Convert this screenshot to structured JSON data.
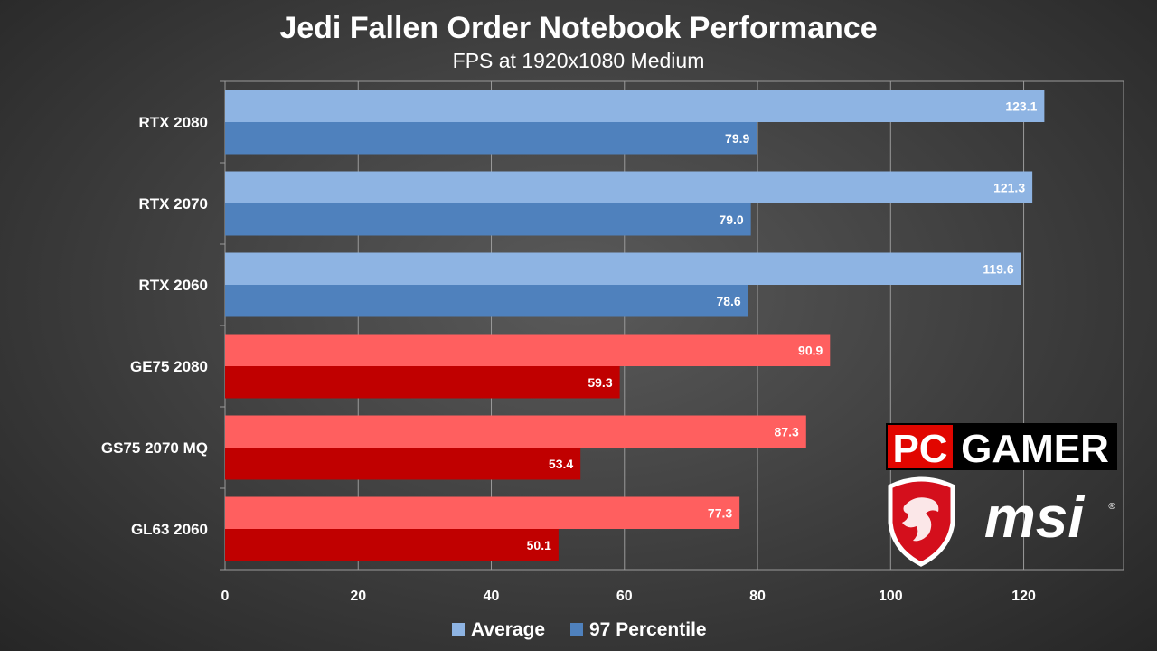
{
  "chart_data": {
    "type": "bar",
    "orientation": "horizontal",
    "title": "Jedi Fallen Order Notebook Performance",
    "subtitle": "FPS at 1920x1080 Medium",
    "categories": [
      "RTX 2080",
      "RTX 2070",
      "RTX 2060",
      "GE75 2080",
      "GS75 2070 MQ",
      "GL63 2060"
    ],
    "series": [
      {
        "name": "Average",
        "values": [
          123.1,
          121.3,
          119.6,
          90.9,
          87.3,
          77.3
        ]
      },
      {
        "name": "97 Percentile",
        "values": [
          79.9,
          79.0,
          78.6,
          59.3,
          53.4,
          50.1
        ]
      }
    ],
    "value_labels": [
      [
        "123.1",
        "121.3",
        "119.6",
        "90.9",
        "87.3",
        "77.3"
      ],
      [
        "79.9",
        "79.0",
        "78.6",
        "59.3",
        "53.4",
        "50.1"
      ]
    ],
    "xlim": [
      0,
      135
    ],
    "xticks": [
      0,
      20,
      40,
      60,
      80,
      100,
      120
    ],
    "xtick_labels": [
      "0",
      "20",
      "40",
      "60",
      "80",
      "100",
      "120"
    ],
    "grid": true,
    "legend": "bottom",
    "colors": {
      "rtx_average": "#8eb4e3",
      "rtx_percentile": "#4f81bd",
      "msi_average": "#ff5f5f",
      "msi_percentile": "#c00000",
      "grid": "#9a9a9a"
    },
    "highlight_categories": [
      3,
      4,
      5
    ]
  },
  "logos": {
    "pcgamer_left": "PC",
    "pcgamer_right": "GAMER",
    "msi": "msi",
    "registered": "®"
  },
  "icons": {
    "msi_logo": "dragon-shield-icon"
  }
}
